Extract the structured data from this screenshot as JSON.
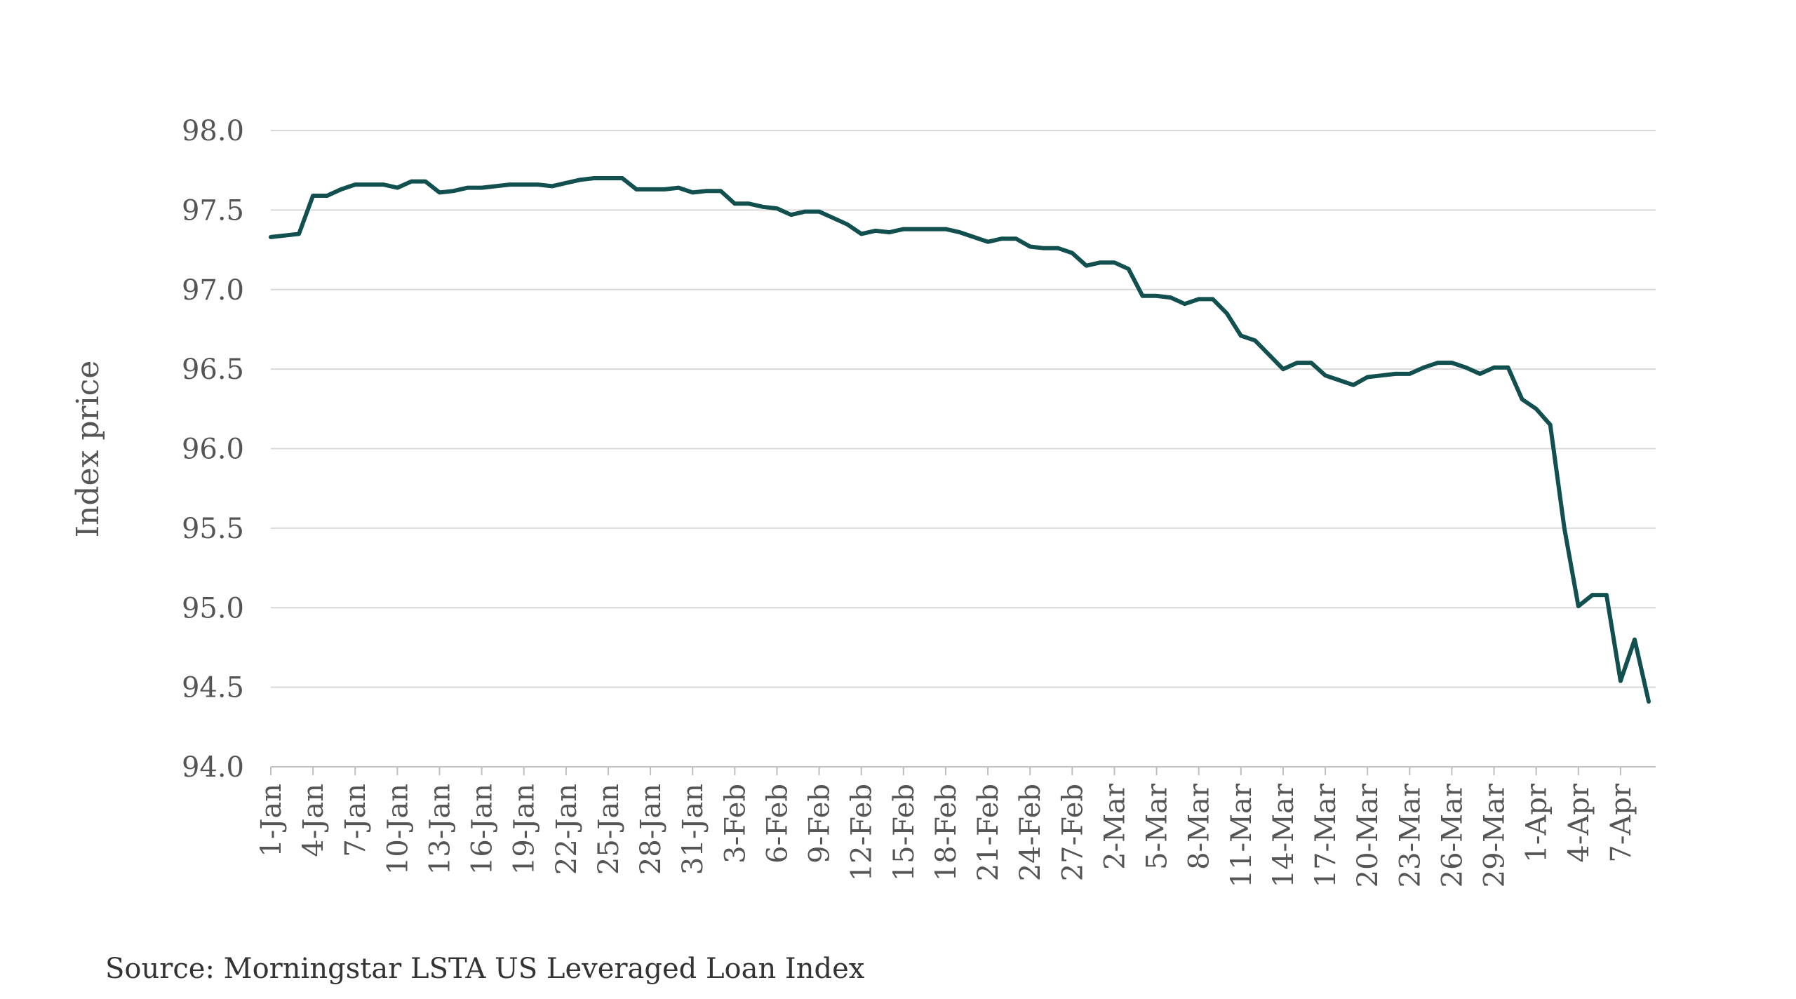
{
  "source": "Source: Morningstar LSTA US Leveraged Loan Index",
  "colors": {
    "line": "#12504f",
    "grid": "#d9d9d9",
    "text": "#555555"
  },
  "chart_data": {
    "type": "line",
    "xlabel": "",
    "ylabel": "Index price",
    "ylim": [
      94.0,
      98.0
    ],
    "yticks": [
      "98.0",
      "97.5",
      "97.0",
      "96.5",
      "96.0",
      "95.5",
      "95.0",
      "94.5",
      "94.0"
    ],
    "grid": true,
    "legend": "none",
    "x": [
      "1-Jan",
      "2-Jan",
      "3-Jan",
      "4-Jan",
      "5-Jan",
      "6-Jan",
      "7-Jan",
      "8-Jan",
      "9-Jan",
      "10-Jan",
      "11-Jan",
      "12-Jan",
      "13-Jan",
      "14-Jan",
      "15-Jan",
      "16-Jan",
      "17-Jan",
      "18-Jan",
      "19-Jan",
      "20-Jan",
      "21-Jan",
      "22-Jan",
      "23-Jan",
      "24-Jan",
      "25-Jan",
      "26-Jan",
      "27-Jan",
      "28-Jan",
      "29-Jan",
      "30-Jan",
      "31-Jan",
      "1-Feb",
      "2-Feb",
      "3-Feb",
      "4-Feb",
      "5-Feb",
      "6-Feb",
      "7-Feb",
      "8-Feb",
      "9-Feb",
      "10-Feb",
      "11-Feb",
      "12-Feb",
      "13-Feb",
      "14-Feb",
      "15-Feb",
      "16-Feb",
      "17-Feb",
      "18-Feb",
      "19-Feb",
      "20-Feb",
      "21-Feb",
      "22-Feb",
      "23-Feb",
      "24-Feb",
      "25-Feb",
      "26-Feb",
      "27-Feb",
      "28-Feb",
      "1-Mar",
      "2-Mar",
      "3-Mar",
      "4-Mar",
      "5-Mar",
      "6-Mar",
      "7-Mar",
      "8-Mar",
      "9-Mar",
      "10-Mar",
      "11-Mar",
      "12-Mar",
      "13-Mar",
      "14-Mar",
      "15-Mar",
      "16-Mar",
      "17-Mar",
      "18-Mar",
      "19-Mar",
      "20-Mar",
      "21-Mar",
      "22-Mar",
      "23-Mar",
      "24-Mar",
      "25-Mar",
      "26-Mar",
      "27-Mar",
      "28-Mar",
      "29-Mar",
      "30-Mar",
      "31-Mar",
      "1-Apr",
      "2-Apr",
      "3-Apr",
      "4-Apr",
      "5-Apr",
      "6-Apr",
      "7-Apr",
      "8-Apr",
      "9-Apr"
    ],
    "xticks": [
      "1-Jan",
      "4-Jan",
      "7-Jan",
      "10-Jan",
      "13-Jan",
      "16-Jan",
      "19-Jan",
      "22-Jan",
      "25-Jan",
      "28-Jan",
      "31-Jan",
      "3-Feb",
      "6-Feb",
      "9-Feb",
      "12-Feb",
      "15-Feb",
      "18-Feb",
      "21-Feb",
      "24-Feb",
      "27-Feb",
      "2-Mar",
      "5-Mar",
      "8-Mar",
      "11-Mar",
      "14-Mar",
      "17-Mar",
      "20-Mar",
      "23-Mar",
      "26-Mar",
      "29-Mar",
      "1-Apr",
      "4-Apr",
      "7-Apr"
    ],
    "series": [
      {
        "name": "",
        "values": [
          97.33,
          97.34,
          97.35,
          97.59,
          97.59,
          97.63,
          97.66,
          97.66,
          97.66,
          97.64,
          97.68,
          97.68,
          97.61,
          97.62,
          97.64,
          97.64,
          97.65,
          97.66,
          97.66,
          97.66,
          97.65,
          97.67,
          97.69,
          97.7,
          97.7,
          97.7,
          97.63,
          97.63,
          97.63,
          97.64,
          97.61,
          97.62,
          97.62,
          97.54,
          97.54,
          97.52,
          97.51,
          97.47,
          97.49,
          97.49,
          97.45,
          97.41,
          97.35,
          97.37,
          97.36,
          97.38,
          97.38,
          97.38,
          97.38,
          97.36,
          97.33,
          97.3,
          97.32,
          97.32,
          97.27,
          97.26,
          97.26,
          97.23,
          97.15,
          97.17,
          97.17,
          97.13,
          96.96,
          96.96,
          96.95,
          96.91,
          96.94,
          96.94,
          96.85,
          96.71,
          96.68,
          96.59,
          96.5,
          96.54,
          96.54,
          96.46,
          96.43,
          96.4,
          96.45,
          96.46,
          96.47,
          96.47,
          96.51,
          96.54,
          96.54,
          96.51,
          96.47,
          96.51,
          96.51,
          96.31,
          96.25,
          96.15,
          95.5,
          95.01,
          95.08,
          95.08,
          94.54,
          94.8,
          94.41
        ]
      }
    ]
  }
}
